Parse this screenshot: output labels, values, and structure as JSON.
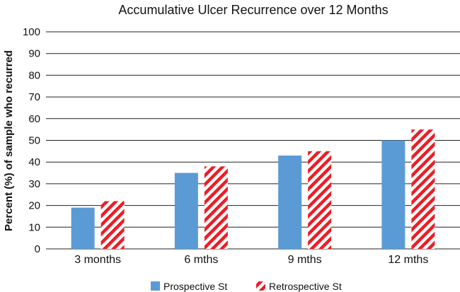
{
  "chart_data": {
    "type": "bar",
    "title": "Accumulative Ulcer Recurrence over 12 Months",
    "xlabel": "",
    "ylabel": "Percent (%) of sample who recurred",
    "ylim": [
      0,
      100
    ],
    "yticks": [
      0,
      10,
      20,
      30,
      40,
      50,
      60,
      70,
      80,
      90,
      100
    ],
    "grid": true,
    "legend_position": "bottom",
    "categories": [
      "3 months",
      "6 mths",
      "9 mths",
      "12 mths"
    ],
    "series": [
      {
        "name": "Prospective St",
        "values": [
          19,
          35,
          43,
          50
        ],
        "color": "#5b9bd5",
        "pattern": "solid"
      },
      {
        "name": "Retrospective St",
        "values": [
          22,
          38,
          45,
          55
        ],
        "color": "#ee1c24",
        "pattern": "diagonal-stripes"
      }
    ]
  }
}
